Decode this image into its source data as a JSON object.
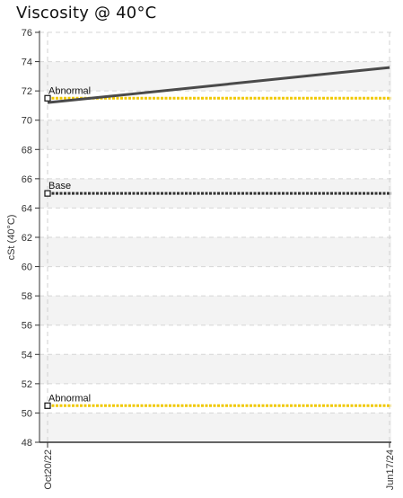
{
  "chart_data": {
    "type": "line",
    "title": "Viscosity @ 40°C",
    "ylabel": "cSt (40°C)",
    "xlabel": "",
    "ylim": [
      48,
      76
    ],
    "yticks": [
      48,
      50,
      52,
      54,
      56,
      58,
      60,
      62,
      64,
      66,
      68,
      70,
      72,
      74,
      76
    ],
    "x_categories": [
      "Oct20/22",
      "Jun17/24"
    ],
    "grid": true,
    "series": [
      {
        "name": "",
        "color": "#4a4a4a",
        "points": [
          {
            "x": "Oct20/22",
            "y": 71.2
          },
          {
            "x": "Jun17/24",
            "y": 73.6
          }
        ]
      }
    ],
    "reference_lines": [
      {
        "label": "Abnormal",
        "value": 71.5,
        "color": "#f0c800",
        "style": "dotted"
      },
      {
        "label": "Base",
        "value": 65,
        "color": "#333333",
        "style": "dotted"
      },
      {
        "label": "Abnormal",
        "value": 50.5,
        "color": "#f0c800",
        "style": "dotted"
      }
    ]
  }
}
